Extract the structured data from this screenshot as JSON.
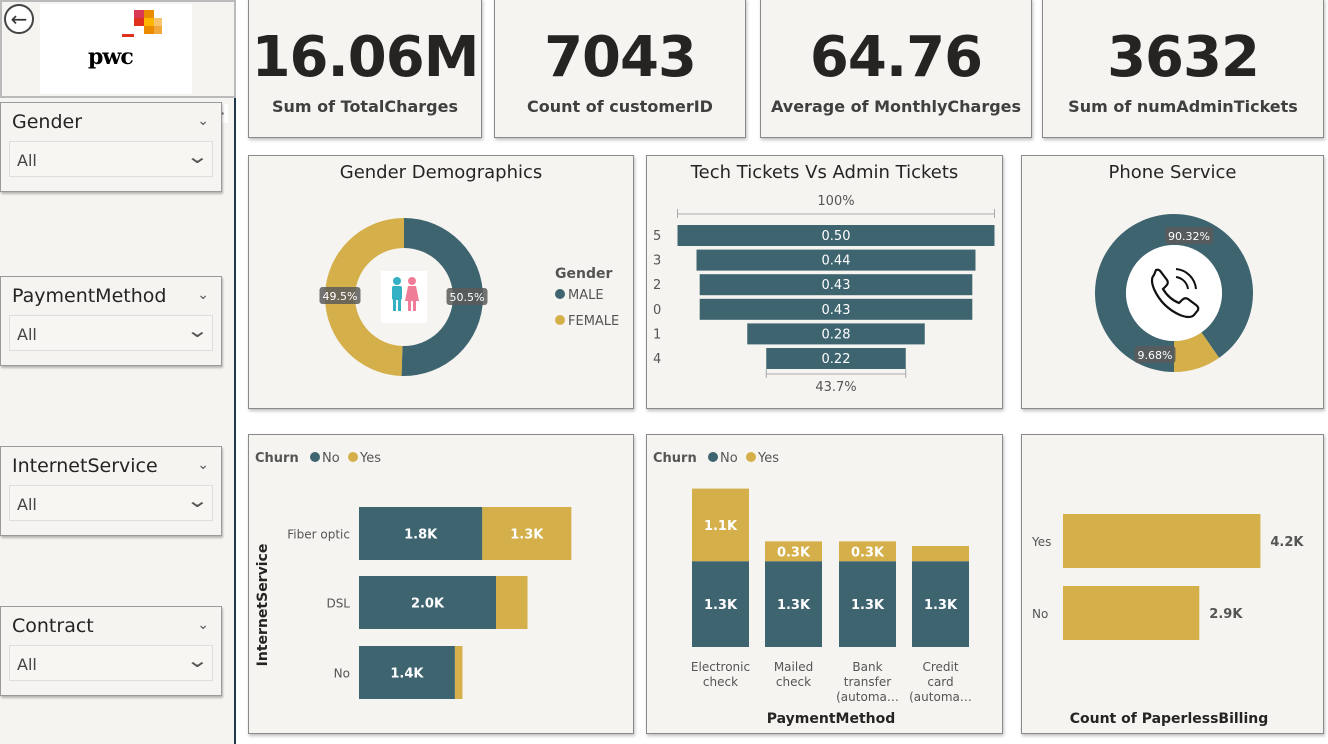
{
  "logo": {
    "text": "pwc"
  },
  "slicers": [
    {
      "title": "Gender",
      "value": "All"
    },
    {
      "title": "PaymentMethod",
      "value": "All"
    },
    {
      "title": "InternetService",
      "value": "All"
    },
    {
      "title": "Contract",
      "value": "All"
    }
  ],
  "kpis": [
    {
      "value": "16.06M",
      "label": "Sum of TotalCharges"
    },
    {
      "value": "7043",
      "label": "Count of customerID"
    },
    {
      "value": "64.76",
      "label": "Average of MonthlyCharges"
    },
    {
      "value": "3632",
      "label": "Sum of numAdminTickets"
    }
  ],
  "colors": {
    "teal": "#3e6470",
    "gold": "#d4af4a",
    "male_icon": "#33b0c4",
    "female_icon": "#f07d98"
  },
  "chart_data": [
    {
      "type": "pie",
      "title": "Gender Demographics",
      "legend_title": "Gender",
      "categories": [
        "MALE",
        "FEMALE"
      ],
      "values": [
        50.5,
        49.5
      ],
      "labels": [
        "50.5%",
        "49.5%"
      ],
      "legend_position": "right"
    },
    {
      "type": "bar",
      "title": "Tech Tickets Vs Admin Tickets",
      "categories": [
        "5",
        "3",
        "2",
        "0",
        "1",
        "4"
      ],
      "values": [
        0.5,
        0.44,
        0.43,
        0.43,
        0.28,
        0.22
      ],
      "labels": [
        "0.50",
        "0.44",
        "0.43",
        "0.43",
        "0.28",
        "0.22"
      ],
      "top_annotation": "100%",
      "bottom_annotation": "43.7%"
    },
    {
      "type": "pie",
      "title": "Phone Service",
      "values": [
        90.32,
        9.68
      ],
      "labels": [
        "90.32%",
        "9.68%"
      ]
    },
    {
      "type": "bar",
      "legend_title": "Churn",
      "series_names": [
        "No",
        "Yes"
      ],
      "ylabel": "InternetService",
      "categories": [
        "Fiber optic",
        "DSL",
        "No"
      ],
      "series": [
        {
          "name": "No",
          "values": [
            1.8,
            2.0,
            1.4
          ],
          "labels": [
            "1.8K",
            "2.0K",
            "1.4K"
          ]
        },
        {
          "name": "Yes",
          "values": [
            1.3,
            0.46,
            0.11
          ],
          "labels": [
            "1.3K",
            "",
            ""
          ]
        }
      ],
      "orientation": "horizontal-stacked"
    },
    {
      "type": "bar",
      "legend_title": "Churn",
      "series_names": [
        "No",
        "Yes"
      ],
      "xlabel": "PaymentMethod",
      "categories": [
        [
          "Electronic",
          "check"
        ],
        [
          "Mailed",
          "check"
        ],
        [
          "Bank",
          "transfer",
          "(automa…"
        ],
        [
          "Credit",
          "card",
          "(automa…"
        ]
      ],
      "series": [
        {
          "name": "No",
          "values": [
            1.3,
            1.3,
            1.3,
            1.3
          ],
          "labels": [
            "1.3K",
            "1.3K",
            "1.3K",
            "1.3K"
          ]
        },
        {
          "name": "Yes",
          "values": [
            1.1,
            0.3,
            0.3,
            0.23
          ],
          "labels": [
            "1.1K",
            "0.3K",
            "0.3K",
            ""
          ]
        }
      ],
      "orientation": "vertical-stacked"
    },
    {
      "type": "bar",
      "xlabel": "Count of PaperlessBilling",
      "categories": [
        "Yes",
        "No"
      ],
      "values": [
        4.2,
        2.9
      ],
      "labels": [
        "4.2K",
        "2.9K"
      ],
      "orientation": "horizontal"
    }
  ]
}
